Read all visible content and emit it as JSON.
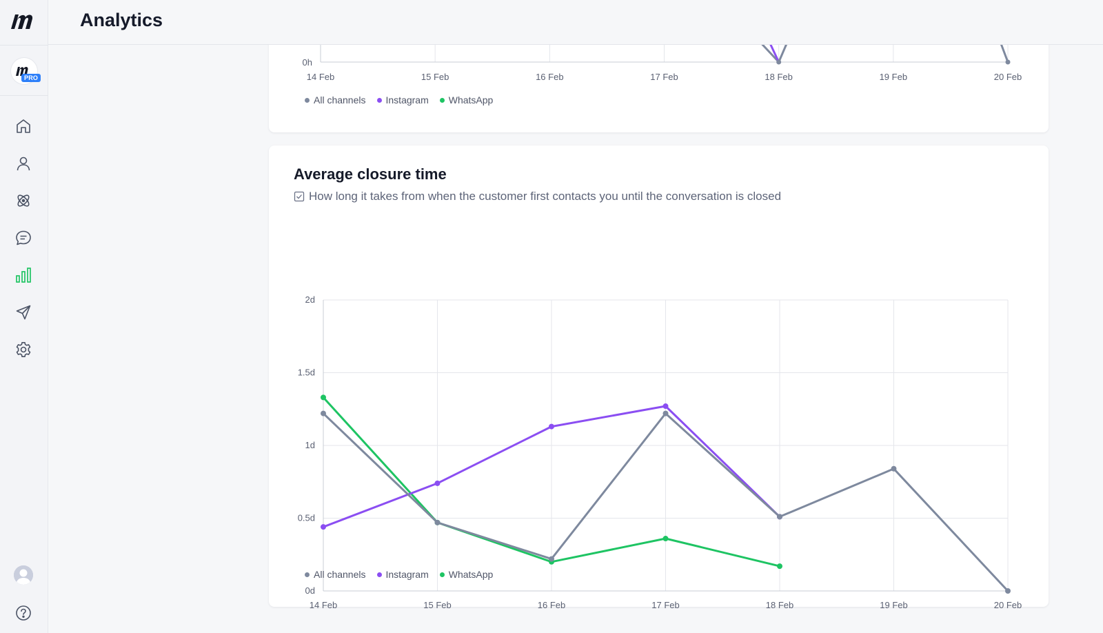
{
  "header": {
    "title": "Analytics"
  },
  "sidebar": {
    "badge": "PRO",
    "items": [
      {
        "name": "home"
      },
      {
        "name": "contacts"
      },
      {
        "name": "integrations"
      },
      {
        "name": "conversations"
      },
      {
        "name": "analytics",
        "active": true
      },
      {
        "name": "broadcasts"
      },
      {
        "name": "settings"
      }
    ]
  },
  "colors": {
    "all": "#7e899e",
    "instagram": "#8b4ef2",
    "whatsapp": "#1ec463",
    "active_nav": "#1ec463"
  },
  "top_chart": {
    "legend": [
      "All channels",
      "Instagram",
      "WhatsApp"
    ],
    "chart_data": {
      "type": "line",
      "categories": [
        "14 Feb",
        "15 Feb",
        "16 Feb",
        "17 Feb",
        "18 Feb",
        "19 Feb",
        "20 Feb"
      ],
      "visible_ytick": "0h",
      "series": [
        {
          "name": "All channels",
          "partial_values_hours": {
            "18 Feb": 0,
            "20 Feb": 0
          }
        },
        {
          "name": "Instagram",
          "partial_values_hours": {
            "18 Feb": 0
          }
        }
      ]
    }
  },
  "closure_chart": {
    "title": "Average closure time",
    "description": "How long it takes from when the customer first contacts you until the conversation is closed",
    "legend": [
      "All channels",
      "Instagram",
      "WhatsApp"
    ],
    "chart_data": {
      "type": "line",
      "title": "Average closure time",
      "ylabel": "days",
      "ylim": [
        0,
        2
      ],
      "yticks": [
        "0d",
        "0.5d",
        "1d",
        "1.5d",
        "2d"
      ],
      "ytick_values": [
        0,
        0.5,
        1,
        1.5,
        2
      ],
      "categories": [
        "14 Feb",
        "15 Feb",
        "16 Feb",
        "17 Feb",
        "18 Feb",
        "19 Feb",
        "20 Feb"
      ],
      "series": [
        {
          "name": "All channels",
          "key": "all",
          "values": [
            1.22,
            0.47,
            0.22,
            1.22,
            0.51,
            0.84,
            0.0
          ]
        },
        {
          "name": "Instagram",
          "key": "instagram",
          "values": [
            0.44,
            0.74,
            1.13,
            1.27,
            0.51,
            null,
            null
          ]
        },
        {
          "name": "WhatsApp",
          "key": "whatsapp",
          "values": [
            1.33,
            0.47,
            0.2,
            0.36,
            0.17,
            null,
            null
          ]
        }
      ]
    }
  }
}
